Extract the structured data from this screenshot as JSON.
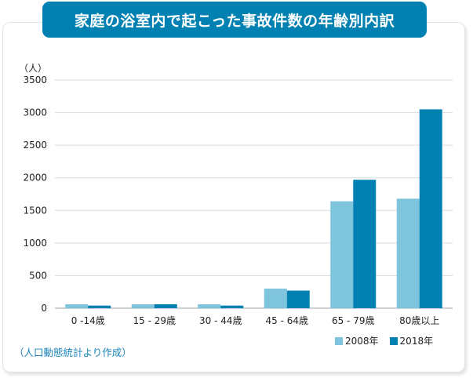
{
  "title": "家庭の浴室内で起こった事故件数の年齢別内訳",
  "unit_label": "（人）",
  "source": "（人口動態統計より作成）",
  "colors": {
    "s2008": "#7fc4dd",
    "s2018": "#0081b2",
    "title_bg": "#0081b2",
    "grid": "#d7dde0"
  },
  "chart_data": {
    "type": "bar",
    "title": "家庭の浴室内で起こった事故件数の年齢別内訳",
    "ylabel": "（人）",
    "xlabel": "",
    "categories": [
      "0 -14歳",
      "15 - 29歳",
      "30 - 44歳",
      "45 - 64歳",
      "65 - 79歳",
      "80歳以上"
    ],
    "series": [
      {
        "name": "2008年",
        "values": [
          60,
          60,
          60,
          300,
          1640,
          1680
        ]
      },
      {
        "name": "2018年",
        "values": [
          40,
          60,
          40,
          270,
          1970,
          3050
        ]
      }
    ],
    "ylim": [
      0,
      3500
    ],
    "yticks": [
      0,
      500,
      1000,
      1500,
      2000,
      2500,
      3000,
      3500
    ],
    "grid": true,
    "legend": "bottom-right"
  }
}
